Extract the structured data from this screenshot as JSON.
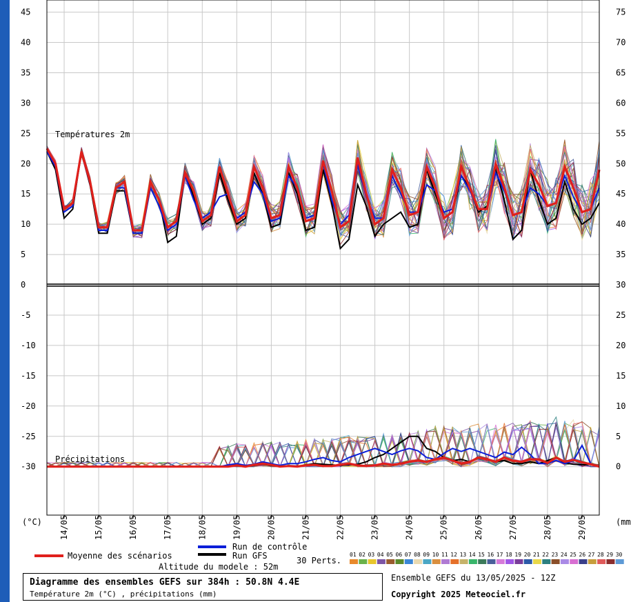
{
  "chart_data": {
    "type": "line",
    "temp_panel_label": "Températures 2m",
    "precip_panel_label": "Précipitations",
    "left_axis_unit": "(°C)",
    "right_axis_unit": "(mm)",
    "left_ticks": [
      45,
      40,
      35,
      30,
      25,
      20,
      15,
      10,
      5,
      0,
      -5,
      -10,
      -15,
      -20,
      -25,
      -30
    ],
    "right_ticks": [
      75,
      70,
      65,
      60,
      55,
      50,
      45,
      40,
      35,
      30,
      25,
      20,
      15,
      10,
      5,
      0
    ],
    "ylim": [
      -38,
      47
    ],
    "right_ylim": [
      -8,
      77
    ],
    "date_labels": [
      "14/05",
      "15/05",
      "16/05",
      "17/05",
      "18/05",
      "19/05",
      "20/05",
      "21/05",
      "22/05",
      "23/05",
      "24/05",
      "25/05",
      "26/05",
      "27/05",
      "28/05",
      "29/05"
    ],
    "x_hours_max": 384,
    "step_hours": 6,
    "mean_temp": [
      22.5,
      20,
      12.5,
      13.5,
      22,
      17,
      9.5,
      9.5,
      16,
      17,
      9,
      9,
      17,
      14,
      9.5,
      10.5,
      18.5,
      15.5,
      10.5,
      11.5,
      19.5,
      15,
      10.5,
      11.5,
      19.5,
      16,
      11,
      11.5,
      19.5,
      16,
      10.5,
      11,
      20.5,
      15.5,
      9.5,
      10.5,
      21,
      15,
      10,
      11,
      19,
      16,
      11.5,
      12,
      19.5,
      16,
      11,
      12,
      19.5,
      16,
      12.5,
      12.5,
      20,
      16,
      11.5,
      12,
      19,
      16.5,
      13,
      13.5,
      19.5,
      16,
      12,
      12.5,
      19
    ],
    "control_temp": [
      22,
      19.5,
      12,
      13,
      22,
      17,
      9,
      9,
      16,
      16,
      8.5,
      8.5,
      16,
      13,
      9,
      10,
      18,
      14,
      11,
      12,
      14.5,
      15,
      11,
      12,
      17,
      15,
      10.5,
      11,
      18,
      16,
      11,
      11.5,
      20,
      14,
      10,
      11.5,
      20,
      14.5,
      11,
      11,
      18,
      15,
      12,
      12,
      16.5,
      15.5,
      12,
      12.5,
      18,
      15.5,
      12.5,
      12.5,
      18.5,
      15.5,
      11.5,
      12,
      16,
      15,
      13,
      13.5,
      18,
      14.5,
      12,
      12.5,
      16
    ],
    "gfs_temp": [
      22,
      19,
      11,
      12.5,
      22,
      16.5,
      8.5,
      8.5,
      15.5,
      15.5,
      8.5,
      8.5,
      17,
      14,
      7,
      8,
      18.5,
      14.5,
      10,
      11,
      18.5,
      14,
      10,
      11,
      18.5,
      15,
      9.5,
      10,
      18.5,
      15,
      9,
      9.5,
      19,
      13.5,
      6,
      7.5,
      16.5,
      13,
      8,
      10,
      11,
      12,
      9.5,
      10,
      19,
      15,
      11,
      12,
      18,
      16,
      12,
      13,
      19,
      14,
      7.5,
      9,
      19,
      14,
      10,
      11,
      17,
      12.5,
      10,
      11,
      13.5
    ],
    "mean_precip": [
      0,
      0,
      0,
      0,
      0,
      0,
      0,
      0,
      0,
      0,
      0,
      0,
      0,
      0,
      0,
      0,
      0,
      0,
      0,
      0,
      0,
      0,
      0.2,
      0,
      0.3,
      0.5,
      0.3,
      0,
      0.1,
      0,
      0.2,
      0.3,
      0.1,
      0.1,
      0.3,
      0.5,
      0.2,
      0.1,
      0.2,
      0.5,
      0.3,
      0.5,
      0.8,
      1,
      0.8,
      1.2,
      1.5,
      1,
      0.5,
      0.8,
      1.5,
      1.2,
      0.8,
      1.5,
      1,
      0.8,
      1.2,
      1.2,
      0.6,
      1.5,
      0.8,
      1.1,
      0.7,
      0.4,
      0
    ],
    "control_precip": [
      0,
      0,
      0,
      0,
      0,
      0,
      0,
      0,
      0,
      0,
      0,
      0,
      0,
      0,
      0,
      0,
      0,
      0,
      0,
      0,
      0,
      0.3,
      0.5,
      0.2,
      0.4,
      0.8,
      0.5,
      0.2,
      0.5,
      0.5,
      0.8,
      1.2,
      1.5,
      1,
      0.8,
      1.5,
      2,
      2.5,
      3,
      2.5,
      2,
      2.6,
      3,
      2.6,
      1.5,
      1.2,
      2.2,
      3,
      2.5,
      3,
      2.5,
      2,
      1.5,
      2.4,
      2,
      3.2,
      2,
      0.5,
      0.5,
      1,
      0.5,
      1,
      3.5,
      0.5,
      0
    ],
    "gfs_precip": [
      0,
      0,
      0,
      0,
      0,
      0,
      0,
      0,
      0,
      0,
      0,
      0,
      0,
      0,
      0,
      0,
      0,
      0,
      0,
      0,
      0,
      0,
      0.3,
      0,
      0.2,
      0.4,
      0.2,
      0,
      0.1,
      0,
      0.3,
      0.5,
      0.4,
      0.3,
      0.2,
      0.3,
      0.4,
      0.8,
      1.5,
      2,
      3,
      4,
      5,
      5,
      3,
      2.5,
      1.5,
      1,
      1.2,
      0.8,
      1.5,
      1.2,
      0.8,
      1,
      0.5,
      0.5,
      0.8,
      0.5,
      1,
      1.5,
      0.6,
      0.4,
      0.3,
      0.4,
      0
    ],
    "member_count": 30,
    "member_colors": [
      "#e8892c",
      "#6ab24a",
      "#e8c62c",
      "#7d55a6",
      "#9a5b2e",
      "#5a8a2a",
      "#3a86d6",
      "#e9d9b0",
      "#4aa7c5",
      "#d98f3f",
      "#b07ad3",
      "#e5702a",
      "#c6b36a",
      "#38b56a",
      "#3c7a5a",
      "#4a5f9a",
      "#d67ad9",
      "#9f56e6",
      "#7a3c9a",
      "#2c5aa8",
      "#e8d84a",
      "#2c7f7f",
      "#8a4f2a",
      "#aa8ae6",
      "#d86fd2",
      "#3a3f8a",
      "#c79e3c",
      "#e05a5a",
      "#8a2c2c",
      "#5d9ad6"
    ]
  },
  "legend": {
    "mean_label": "Moyenne des scénarios",
    "control_label": "Run de contrôle",
    "gfs_label": "Run GFS",
    "perts_label": "30 Perts.",
    "member_numbers": [
      "01",
      "02",
      "03",
      "04",
      "05",
      "06",
      "07",
      "08",
      "09",
      "10",
      "11",
      "12",
      "13",
      "14",
      "15",
      "16",
      "17",
      "18",
      "19",
      "20",
      "21",
      "22",
      "23",
      "24",
      "25",
      "26",
      "27",
      "28",
      "29",
      "30"
    ],
    "altitude": "Altitude du modele : 52m",
    "mean_color": "#e0201c",
    "control_color": "#0a1ed8",
    "gfs_color": "#000000"
  },
  "title_box": {
    "title": "Diagramme des ensembles GEFS sur 384h : 50.8N 4.4E",
    "subtitle": "Température 2m (°C) , précipitations (mm)"
  },
  "info": {
    "run": "Ensemble GEFS du 13/05/2025 - 12Z",
    "copyright": "Copyright 2025 Meteociel.fr"
  }
}
